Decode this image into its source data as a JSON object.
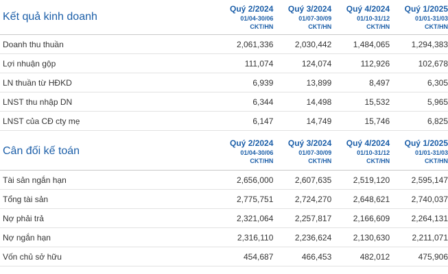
{
  "income": {
    "title": "Kết quả kinh doanh",
    "columns": [
      {
        "quarter": "Quý 2/2024",
        "range": "01/04-30/06",
        "audit": "CKT/HN"
      },
      {
        "quarter": "Quý 3/2024",
        "range": "01/07-30/09",
        "audit": "CKT/HN"
      },
      {
        "quarter": "Quý 4/2024",
        "range": "01/10-31/12",
        "audit": "CKT/HN"
      },
      {
        "quarter": "Quý 1/2025",
        "range": "01/01-31/03",
        "audit": "CKT/HN"
      }
    ],
    "rows": [
      {
        "label": "Doanh thu thuần",
        "values": [
          "2,061,336",
          "2,030,442",
          "1,484,065",
          "1,294,383"
        ]
      },
      {
        "label": "Lợi nhuận gộp",
        "values": [
          "111,074",
          "124,074",
          "112,926",
          "102,678"
        ]
      },
      {
        "label": "LN thuần từ HĐKD",
        "values": [
          "6,939",
          "13,899",
          "8,497",
          "6,305"
        ]
      },
      {
        "label": "LNST thu nhập DN",
        "values": [
          "6,344",
          "14,498",
          "15,532",
          "5,965"
        ]
      },
      {
        "label": "LNST của CĐ cty mẹ",
        "values": [
          "6,147",
          "14,749",
          "15,746",
          "6,825"
        ]
      }
    ]
  },
  "balance": {
    "title": "Cân đối kế toán",
    "columns": [
      {
        "quarter": "Quý 2/2024",
        "range": "01/04-30/06",
        "audit": "CKT/HN"
      },
      {
        "quarter": "Quý 3/2024",
        "range": "01/07-30/09",
        "audit": "CKT/HN"
      },
      {
        "quarter": "Quý 4/2024",
        "range": "01/10-31/12",
        "audit": "CKT/HN"
      },
      {
        "quarter": "Quý 1/2025",
        "range": "01/01-31/03",
        "audit": "CKT/HN"
      }
    ],
    "rows": [
      {
        "label": "Tài sản ngắn hạn",
        "values": [
          "2,656,000",
          "2,607,635",
          "2,519,120",
          "2,595,147"
        ]
      },
      {
        "label": "Tổng tài sản",
        "values": [
          "2,775,751",
          "2,724,270",
          "2,648,621",
          "2,740,037"
        ]
      },
      {
        "label": "Nợ phải trả",
        "values": [
          "2,321,064",
          "2,257,817",
          "2,166,609",
          "2,264,131"
        ]
      },
      {
        "label": "Nợ ngắn hạn",
        "values": [
          "2,316,110",
          "2,236,624",
          "2,130,630",
          "2,211,071"
        ]
      },
      {
        "label": "Vốn chủ sở hữu",
        "values": [
          "454,687",
          "466,453",
          "482,012",
          "475,906"
        ]
      }
    ]
  }
}
